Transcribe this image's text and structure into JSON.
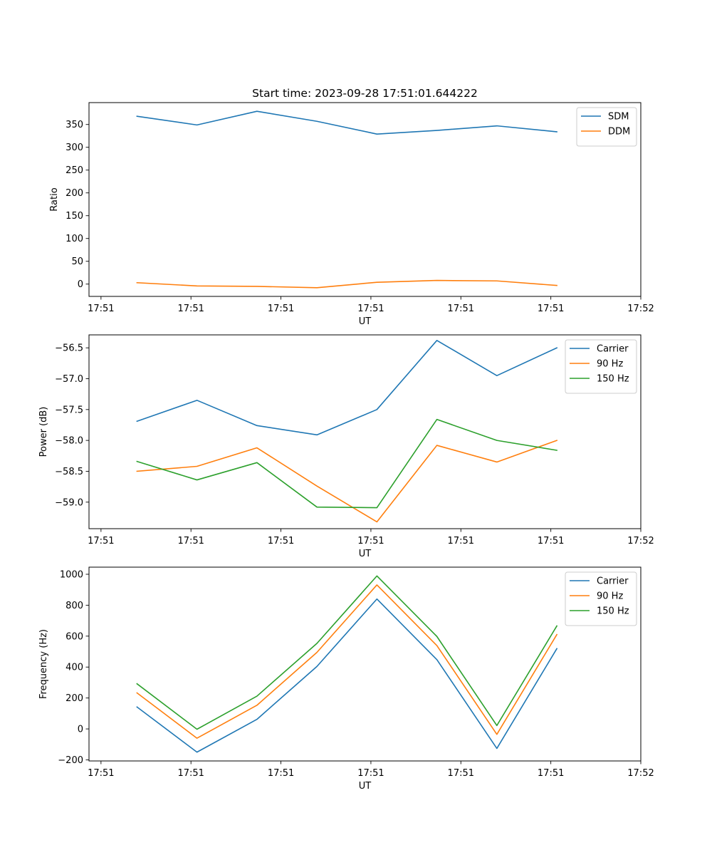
{
  "chart_data": [
    {
      "type": "line",
      "title": "Start time: 2023-09-28 17:51:01.644222",
      "xlabel": "UT",
      "ylabel": "Ratio",
      "x": [
        1,
        2,
        3,
        4,
        5,
        6,
        7,
        8
      ],
      "xlim": [
        0.2,
        9.4
      ],
      "xticks": [
        0.4,
        1.9,
        3.4,
        4.9,
        6.4,
        7.9,
        9.4
      ],
      "xtick_labels": [
        "17:51",
        "17:51",
        "17:51",
        "17:51",
        "17:51",
        "17:51",
        "17:52"
      ],
      "ylim": [
        -27,
        398
      ],
      "yticks": [
        0,
        50,
        100,
        150,
        200,
        250,
        300,
        350
      ],
      "ytick_labels": [
        "0",
        "50",
        "100",
        "150",
        "200",
        "250",
        "300",
        "350"
      ],
      "legend_position": "top-right",
      "series": [
        {
          "name": "SDM",
          "color": "#1f77b4",
          "values": [
            368,
            349,
            379,
            357,
            329,
            337,
            347,
            334
          ]
        },
        {
          "name": "DDM",
          "color": "#ff7f0e",
          "values": [
            3,
            -4,
            -5,
            -8,
            4,
            8,
            7,
            -3
          ]
        }
      ]
    },
    {
      "type": "line",
      "title": "",
      "xlabel": "UT",
      "ylabel": "Power (dB)",
      "x": [
        1,
        2,
        3,
        4,
        5,
        6,
        7,
        8
      ],
      "xlim": [
        0.2,
        9.4
      ],
      "xticks": [
        0.4,
        1.9,
        3.4,
        4.9,
        6.4,
        7.9,
        9.4
      ],
      "xtick_labels": [
        "17:51",
        "17:51",
        "17:51",
        "17:51",
        "17:51",
        "17:51",
        "17:52"
      ],
      "ylim": [
        -59.43,
        -56.29
      ],
      "yticks": [
        -59.0,
        -58.5,
        -58.0,
        -57.5,
        -57.0,
        -56.5
      ],
      "ytick_labels": [
        "−59.0",
        "−58.5",
        "−58.0",
        "−57.5",
        "−57.0",
        "−56.5"
      ],
      "legend_position": "top-right",
      "series": [
        {
          "name": "Carrier",
          "color": "#1f77b4",
          "values": [
            -57.69,
            -57.35,
            -57.76,
            -57.91,
            -57.5,
            -56.38,
            -56.95,
            -56.5
          ]
        },
        {
          "name": "90 Hz",
          "color": "#ff7f0e",
          "values": [
            -58.5,
            -58.42,
            -58.12,
            -58.74,
            -59.32,
            -58.08,
            -58.35,
            -58.0
          ]
        },
        {
          "name": "150 Hz",
          "color": "#2ca02c",
          "values": [
            -58.34,
            -58.64,
            -58.36,
            -59.08,
            -59.09,
            -57.66,
            -58.0,
            -58.16
          ]
        }
      ]
    },
    {
      "type": "line",
      "title": "",
      "xlabel": "UT",
      "ylabel": "Frequency (Hz)",
      "x": [
        1,
        2,
        3,
        4,
        5,
        6,
        7,
        8
      ],
      "xlim": [
        0.2,
        9.4
      ],
      "xticks": [
        0.4,
        1.9,
        3.4,
        4.9,
        6.4,
        7.9,
        9.4
      ],
      "xtick_labels": [
        "17:51",
        "17:51",
        "17:51",
        "17:51",
        "17:51",
        "17:51",
        "17:52"
      ],
      "ylim": [
        -207,
        1046
      ],
      "yticks": [
        -200,
        0,
        200,
        400,
        600,
        800,
        1000
      ],
      "ytick_labels": [
        "−200",
        "0",
        "200",
        "400",
        "600",
        "800",
        "1000"
      ],
      "legend_position": "top-right",
      "series": [
        {
          "name": "Carrier",
          "color": "#1f77b4",
          "values": [
            142,
            -150,
            62,
            404,
            840,
            448,
            -126,
            519
          ]
        },
        {
          "name": "90 Hz",
          "color": "#ff7f0e",
          "values": [
            233,
            -60,
            153,
            495,
            931,
            539,
            -35,
            610
          ]
        },
        {
          "name": "150 Hz",
          "color": "#2ca02c",
          "values": [
            292,
            -2,
            212,
            553,
            989,
            598,
            22,
            666
          ]
        }
      ]
    }
  ]
}
